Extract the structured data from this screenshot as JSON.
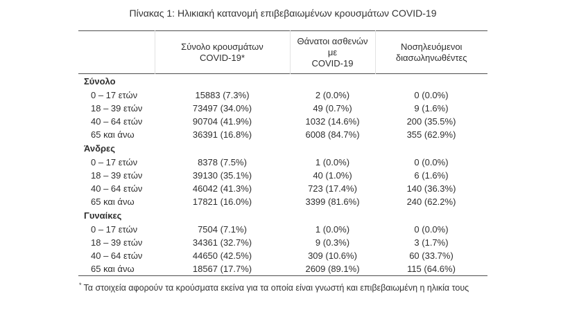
{
  "page": {
    "title": "Πίνακας 1: Ηλικιακή κατανομή επιβεβαιωμένων κρουσμάτων COVID-19",
    "footnote_marker": "*",
    "footnote": "Τα στοιχεία αφορούν τα κρούσματα εκείνα για τα οποία είναι γνωστή και επιβεβαιωμένη η ηλικία τους"
  },
  "colors": {
    "rule": "#4d4d4d",
    "header_separator": "#e2e2e2",
    "text": "#2e2e2e",
    "background": "#ffffff"
  },
  "table": {
    "columns": [
      {
        "line1": "",
        "line2": ""
      },
      {
        "line1": "Σύνολο κρουσμάτων",
        "line2": "COVID-19*"
      },
      {
        "line1": "Θάνατοι ασθενών με",
        "line2": "COVID-19"
      },
      {
        "line1": "Νοσηλευόμενοι",
        "line2": "διασωληνωθέντες"
      }
    ],
    "sections": [
      {
        "label": "Σύνολο",
        "rows": [
          {
            "label": "0 – 17 ετών",
            "cases": "15883 (7.3%)",
            "deaths": "2 (0.0%)",
            "intubated": "0 (0.0%)"
          },
          {
            "label": "18 – 39 ετών",
            "cases": "73497 (34.0%)",
            "deaths": "49 (0.7%)",
            "intubated": "9 (1.6%)"
          },
          {
            "label": "40 – 64 ετών",
            "cases": "90704 (41.9%)",
            "deaths": "1032 (14.6%)",
            "intubated": "200 (35.5%)"
          },
          {
            "label": "65 και άνω",
            "cases": "36391 (16.8%)",
            "deaths": "6008 (84.7%)",
            "intubated": "355 (62.9%)"
          }
        ]
      },
      {
        "label": "Άνδρες",
        "rows": [
          {
            "label": "0 – 17 ετών",
            "cases": "8378 (7.5%)",
            "deaths": "1 (0.0%)",
            "intubated": "0 (0.0%)"
          },
          {
            "label": "18 – 39 ετών",
            "cases": "39130 (35.1%)",
            "deaths": "40 (1.0%)",
            "intubated": "6 (1.6%)"
          },
          {
            "label": "40 – 64 ετών",
            "cases": "46042 (41.3%)",
            "deaths": "723 (17.4%)",
            "intubated": "140 (36.3%)"
          },
          {
            "label": "65 και άνω",
            "cases": "17821 (16.0%)",
            "deaths": "3399 (81.6%)",
            "intubated": "240 (62.2%)"
          }
        ]
      },
      {
        "label": "Γυναίκες",
        "rows": [
          {
            "label": "0 – 17 ετών",
            "cases": "7504 (7.1%)",
            "deaths": "1 (0.0%)",
            "intubated": "0 (0.0%)"
          },
          {
            "label": "18 – 39 ετών",
            "cases": "34361 (32.7%)",
            "deaths": "9 (0.3%)",
            "intubated": "3 (1.7%)"
          },
          {
            "label": "40 – 64 ετών",
            "cases": "44650 (42.5%)",
            "deaths": "309 (10.6%)",
            "intubated": "60 (33.7%)"
          },
          {
            "label": "65 και άνω",
            "cases": "18567 (17.7%)",
            "deaths": "2609 (89.1%)",
            "intubated": "115 (64.6%)"
          }
        ]
      }
    ]
  }
}
